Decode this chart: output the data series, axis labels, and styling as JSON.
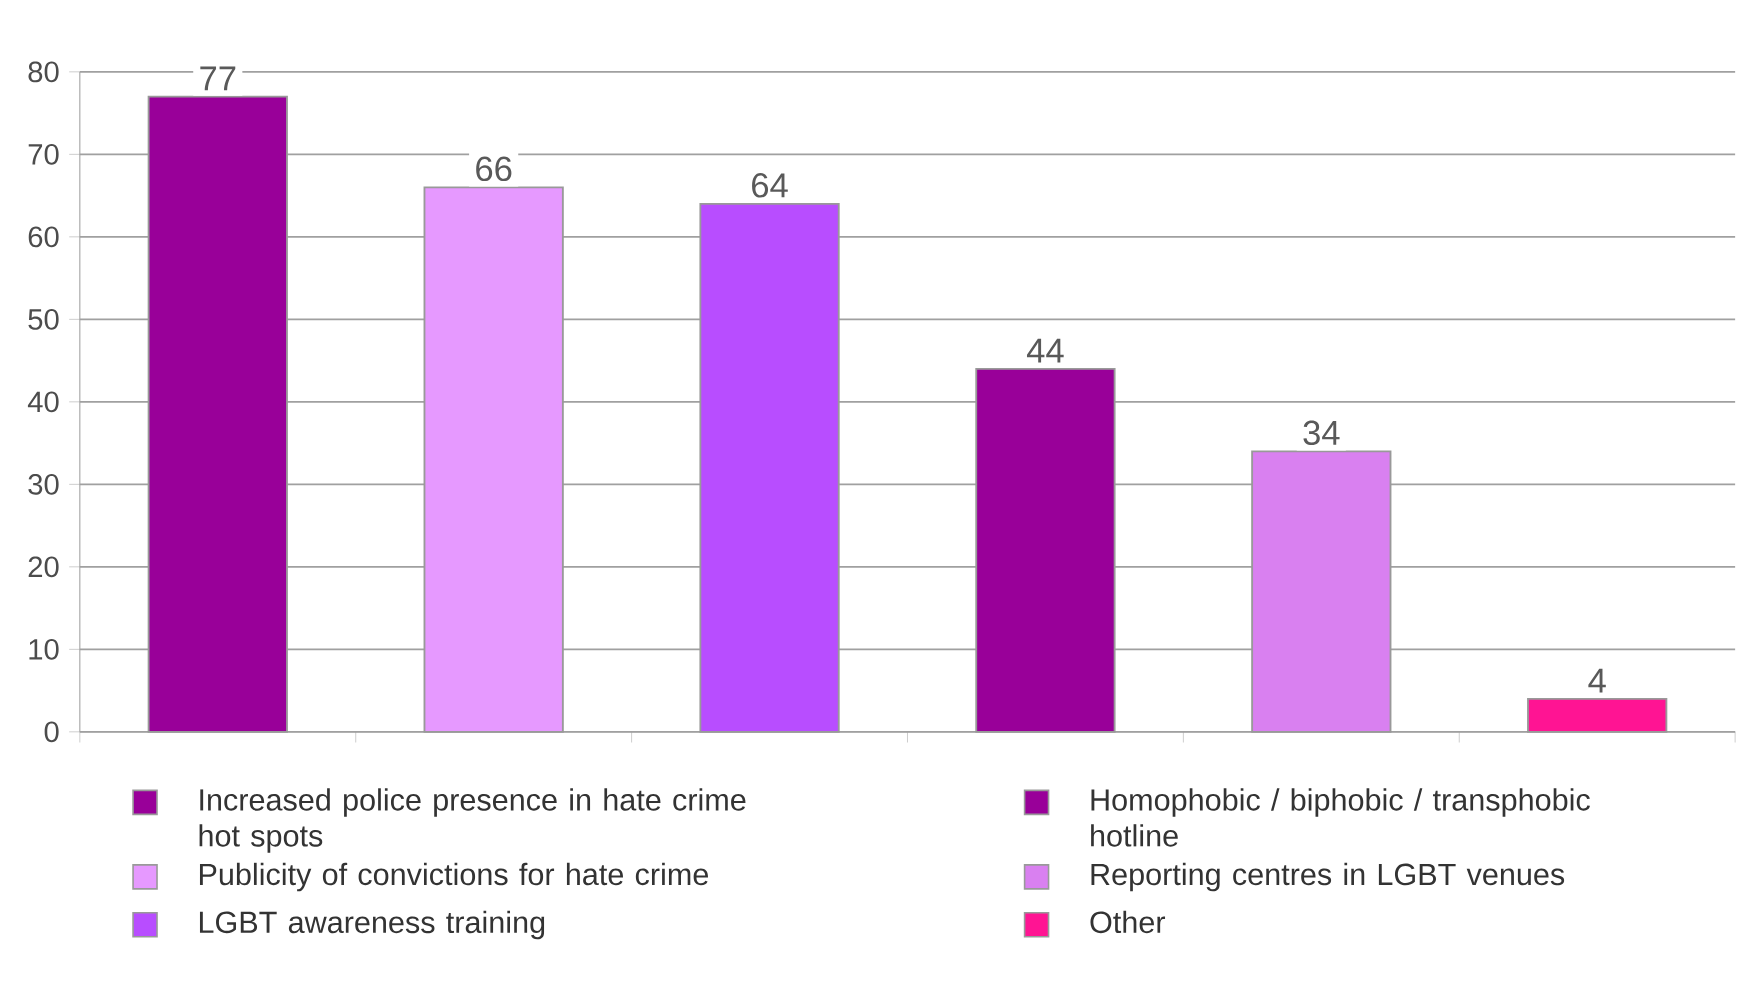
{
  "chart_data": {
    "type": "bar",
    "categories": [
      null,
      null,
      null,
      null,
      null,
      null
    ],
    "series": [
      {
        "name": "Increased police presence in hate crime hot spots",
        "color": "#990099",
        "values": [
          77,
          null,
          null,
          null,
          null,
          null
        ],
        "value_labels": [
          "77",
          null,
          null,
          null,
          null,
          null
        ]
      },
      {
        "name": "Publicity of convictions for hate crime",
        "color": "#e699ff",
        "values": [
          null,
          66,
          null,
          null,
          null,
          null
        ],
        "value_labels": [
          null,
          "66",
          null,
          null,
          null,
          null
        ]
      },
      {
        "name": "LGBT awareness training",
        "color": "#b84dff",
        "values": [
          null,
          null,
          64,
          null,
          null,
          null
        ],
        "value_labels": [
          null,
          null,
          "64",
          null,
          null,
          null
        ]
      },
      {
        "name": "Homophobic / biphobic / transphobic hotline",
        "color": "#990099",
        "values": [
          null,
          null,
          null,
          44,
          null,
          null
        ],
        "value_labels": [
          null,
          null,
          null,
          "44",
          null,
          null
        ]
      },
      {
        "name": "Reporting centres in LGBT venues",
        "color": "#d980f0",
        "values": [
          null,
          null,
          null,
          null,
          34,
          null
        ],
        "value_labels": [
          null,
          null,
          null,
          null,
          "34",
          null
        ]
      },
      {
        "name": "Other",
        "color": "#ff1493",
        "values": [
          null,
          null,
          null,
          null,
          null,
          4
        ],
        "value_labels": [
          null,
          null,
          null,
          null,
          null,
          "4"
        ]
      }
    ],
    "ylim": [
      0,
      80
    ],
    "yticks": [
      0,
      10,
      20,
      30,
      40,
      50,
      60,
      70,
      80
    ],
    "grid": "y",
    "legend": "bottom"
  }
}
